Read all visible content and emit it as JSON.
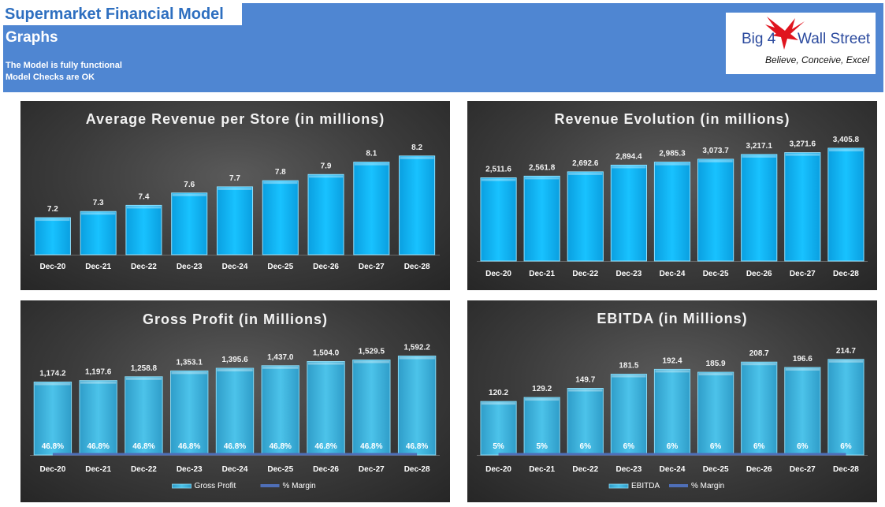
{
  "header": {
    "title": "Supermarket Financial Model",
    "subtitle": "Graphs",
    "status_lines": [
      "The Model is fully functional",
      "Model Checks are OK"
    ]
  },
  "logo": {
    "brand_left": "Big 4",
    "brand_right": "Wall Street",
    "tagline": "Believe, Conceive, Excel",
    "icon": "eagle-icon"
  },
  "colors": {
    "banner": "#4f86d2",
    "title_text": "#2e6fc0",
    "bar_bright": "#0fb4f5",
    "bar_teal": "#3ab0d9",
    "margin_line": "#4f6fb8"
  },
  "chart_data": [
    {
      "type": "bar",
      "title": "Average Revenue per Store (in millions)",
      "categories": [
        "Dec-20",
        "Dec-21",
        "Dec-22",
        "Dec-23",
        "Dec-24",
        "Dec-25",
        "Dec-26",
        "Dec-27",
        "Dec-28"
      ],
      "values": [
        7.2,
        7.3,
        7.4,
        7.6,
        7.7,
        7.8,
        7.9,
        8.1,
        8.2
      ],
      "value_labels": [
        "7.2",
        "7.3",
        "7.4",
        "7.6",
        "7.7",
        "7.8",
        "7.9",
        "8.1",
        "8.2"
      ],
      "ylim": [
        6.6,
        8.3
      ],
      "grid": false
    },
    {
      "type": "bar",
      "title": "Revenue Evolution (in millions)",
      "categories": [
        "Dec-20",
        "Dec-21",
        "Dec-22",
        "Dec-23",
        "Dec-24",
        "Dec-25",
        "Dec-26",
        "Dec-27",
        "Dec-28"
      ],
      "values": [
        2511.6,
        2561.8,
        2692.6,
        2894.4,
        2985.3,
        3073.7,
        3217.1,
        3271.6,
        3405.8
      ],
      "value_labels": [
        "2,511.6",
        "2,561.8",
        "2,692.6",
        "2,894.4",
        "2,985.3",
        "3,073.7",
        "3,217.1",
        "3,271.6",
        "3,405.8"
      ],
      "ylim": [
        0,
        3500
      ],
      "grid": false
    },
    {
      "type": "bar",
      "title": "Gross Profit (in Millions)",
      "categories": [
        "Dec-20",
        "Dec-21",
        "Dec-22",
        "Dec-23",
        "Dec-24",
        "Dec-25",
        "Dec-26",
        "Dec-27",
        "Dec-28"
      ],
      "series": [
        {
          "name": "Gross Profit",
          "values": [
            1174.2,
            1197.6,
            1258.8,
            1353.1,
            1395.6,
            1437.0,
            1504.0,
            1529.5,
            1592.2
          ],
          "labels": [
            "1,174.2",
            "1,197.6",
            "1,258.8",
            "1,353.1",
            "1,395.6",
            "1,437.0",
            "1,504.0",
            "1,529.5",
            "1,592.2"
          ]
        },
        {
          "name": "% Margin",
          "values": [
            46.8,
            46.8,
            46.8,
            46.8,
            46.8,
            46.8,
            46.8,
            46.8,
            46.8
          ],
          "labels": [
            "46.8%",
            "46.8%",
            "46.8%",
            "46.8%",
            "46.8%",
            "46.8%",
            "46.8%",
            "46.8%",
            "46.8%"
          ]
        }
      ],
      "ylim": [
        0,
        1650
      ],
      "legend": "bottom",
      "grid": false
    },
    {
      "type": "bar",
      "title": "EBITDA (in Millions)",
      "categories": [
        "Dec-20",
        "Dec-21",
        "Dec-22",
        "Dec-23",
        "Dec-24",
        "Dec-25",
        "Dec-26",
        "Dec-27",
        "Dec-28"
      ],
      "series": [
        {
          "name": "EBITDA",
          "values": [
            120.2,
            129.2,
            149.7,
            181.5,
            192.4,
            185.9,
            208.7,
            196.6,
            214.7
          ],
          "labels": [
            "120.2",
            "129.2",
            "149.7",
            "181.5",
            "192.4",
            "185.9",
            "208.7",
            "196.6",
            "214.7"
          ]
        },
        {
          "name": "% Margin",
          "values": [
            5,
            5,
            6,
            6,
            6,
            6,
            6,
            6,
            6
          ],
          "labels": [
            "5%",
            "5%",
            "6%",
            "6%",
            "6%",
            "6%",
            "6%",
            "6%",
            "6%"
          ]
        }
      ],
      "ylim": [
        0,
        225
      ],
      "legend": "bottom",
      "grid": false
    }
  ]
}
